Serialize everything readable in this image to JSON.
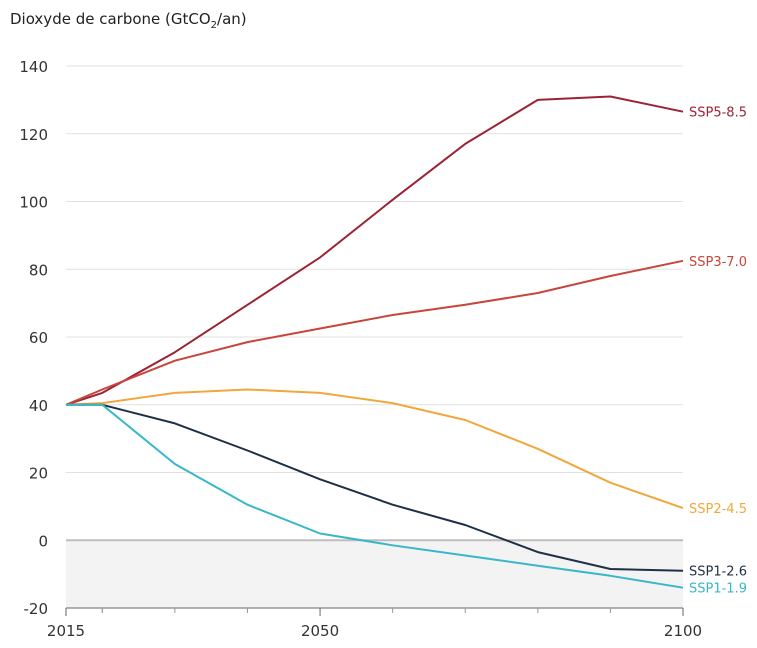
{
  "chart_data": {
    "type": "line",
    "title": "Dioxyde de carbone (GtCO",
    "title_sub": "2",
    "title_tail": "/an)",
    "xlabel": "",
    "ylabel": "",
    "xlim": [
      2015,
      2100
    ],
    "ylim": [
      -20,
      140
    ],
    "x_ticks": [
      2015,
      2050,
      2100
    ],
    "y_ticks": [
      -20,
      0,
      20,
      40,
      60,
      80,
      100,
      120,
      140
    ],
    "grid": true,
    "negative_region_shaded": true,
    "series": [
      {
        "name": "SSP5-8.5",
        "color": "#9b2335",
        "x": [
          2015,
          2020,
          2030,
          2040,
          2050,
          2060,
          2070,
          2080,
          2090,
          2100
        ],
        "y": [
          40,
          43.5,
          55.5,
          69.5,
          83.5,
          100.5,
          117,
          130,
          131,
          126.5
        ]
      },
      {
        "name": "SSP3-7.0",
        "color": "#c8453a",
        "x": [
          2015,
          2020,
          2030,
          2040,
          2050,
          2060,
          2070,
          2080,
          2090,
          2100
        ],
        "y": [
          40,
          44.5,
          53,
          58.5,
          62.5,
          66.5,
          69.5,
          73,
          78,
          82.5
        ]
      },
      {
        "name": "SSP2-4.5",
        "color": "#f0a83c",
        "x": [
          2015,
          2020,
          2030,
          2040,
          2050,
          2060,
          2070,
          2080,
          2090,
          2100
        ],
        "y": [
          40,
          40.5,
          43.5,
          44.5,
          43.5,
          40.5,
          35.5,
          27,
          17,
          9.5
        ]
      },
      {
        "name": "SSP1-2.6",
        "color": "#1e3144",
        "x": [
          2015,
          2020,
          2030,
          2040,
          2050,
          2060,
          2070,
          2080,
          2090,
          2100
        ],
        "y": [
          40,
          40,
          34.5,
          26.5,
          18,
          10.5,
          4.5,
          -3.5,
          -8.5,
          -9
        ]
      },
      {
        "name": "SSP1-1.9",
        "color": "#38b7c9",
        "x": [
          2015,
          2020,
          2030,
          2040,
          2050,
          2060,
          2070,
          2080,
          2090,
          2100
        ],
        "y": [
          40,
          40,
          22.5,
          10.5,
          2,
          -1.5,
          -4.5,
          -7.5,
          -10.5,
          -14
        ]
      }
    ]
  }
}
